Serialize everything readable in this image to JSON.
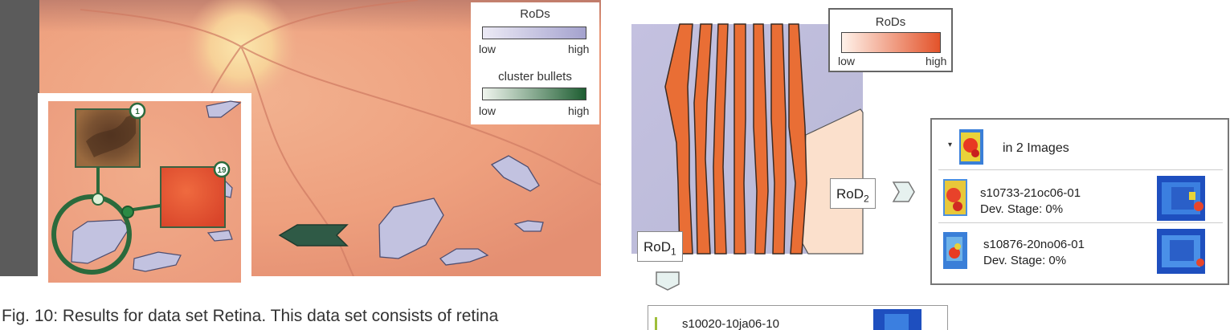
{
  "legend_left": {
    "rods_title": "RoDs",
    "rods_low": "low",
    "rods_high": "high",
    "rods_colors": [
      "#eceaf5",
      "#a4a2ce"
    ],
    "bullets_title": "cluster bullets",
    "bullets_low": "low",
    "bullets_high": "high",
    "bullets_colors": [
      "#f0f5ee",
      "#1e5e32"
    ]
  },
  "inset": {
    "bullet_1": "1",
    "bullet_2": "19"
  },
  "legend_right": {
    "title": "RoDs",
    "low": "low",
    "high": "high",
    "colors": [
      "#fff2ea",
      "#e3532a"
    ]
  },
  "rod_labels": {
    "rod1_main": "RoD",
    "rod1_sub": "1",
    "rod2_main": "RoD",
    "rod2_sub": "2"
  },
  "list_panel": {
    "header": "in 2 Images",
    "items": [
      {
        "name": "s10733-21oc06-01",
        "stage": "Dev. Stage: 0%"
      },
      {
        "name": "s10876-20no06-01",
        "stage": "Dev. Stage: 0%"
      }
    ]
  },
  "bottom_item": {
    "name": "s10020-10ja06-10"
  },
  "caption": "Fig. 10:  Results for data set Retina. This data set consists of retina"
}
